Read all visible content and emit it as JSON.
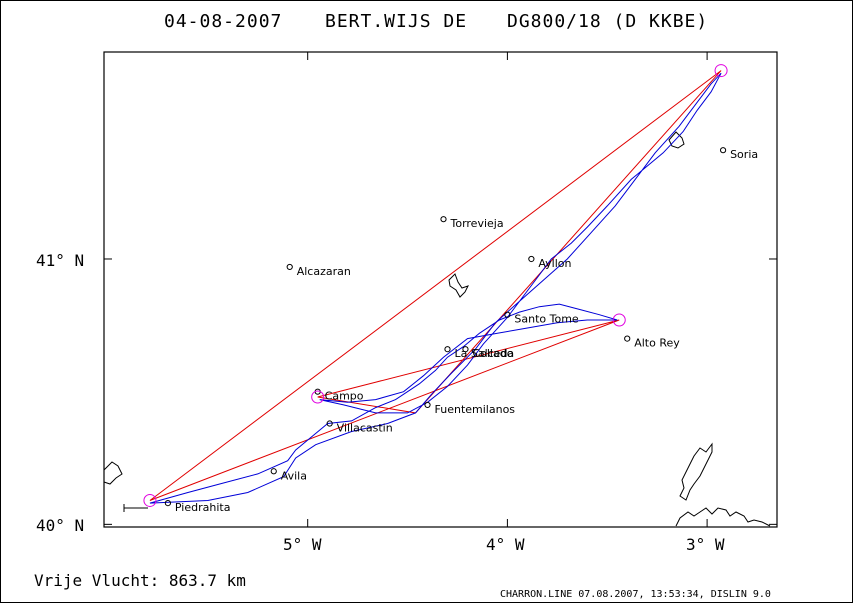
{
  "header": {
    "date": "04-08-2007",
    "pilot": "BERT.WIJS DE",
    "glider": "DG800/18 (D KKBE)"
  },
  "axes": {
    "lat_labels": [
      {
        "text": "41° N",
        "lat": 41.0
      },
      {
        "text": "40° N",
        "lat": 40.0
      }
    ],
    "lon_labels": [
      {
        "text": "5° W",
        "lon": -5.0
      },
      {
        "text": "4° W",
        "lon": -4.0
      },
      {
        "text": "3° W",
        "lon": -3.0
      }
    ],
    "lat_range": [
      39.99,
      41.78
    ],
    "lon_range": [
      -6.02,
      -2.65
    ]
  },
  "places": [
    {
      "name": "Soria",
      "lat": 41.41,
      "lon": -2.92
    },
    {
      "name": "Torrevieja",
      "lat": 41.15,
      "lon": -4.32
    },
    {
      "name": "Alcazaran",
      "lat": 40.97,
      "lon": -5.09
    },
    {
      "name": "Ayllon",
      "lat": 41.0,
      "lon": -3.88
    },
    {
      "name": "Santo Tome",
      "lat": 40.79,
      "lon": -4.0
    },
    {
      "name": "Alto Rey",
      "lat": 40.7,
      "lon": -3.4
    },
    {
      "name": "La Salceda",
      "lat": 40.66,
      "lon": -4.3
    },
    {
      "name": "Collado",
      "lat": 40.66,
      "lon": -4.21
    },
    {
      "name": "Campo",
      "lat": 40.5,
      "lon": -4.95
    },
    {
      "name": "Fuentemilanos",
      "lat": 40.45,
      "lon": -4.4
    },
    {
      "name": "Villacastin",
      "lat": 40.38,
      "lon": -4.89
    },
    {
      "name": "Avila",
      "lat": 40.2,
      "lon": -5.17
    },
    {
      "name": "Piedrahita",
      "lat": 40.08,
      "lon": -5.7
    }
  ],
  "turnpoints": [
    {
      "lat": 40.09,
      "lon": -5.79
    },
    {
      "lat": 41.71,
      "lon": -2.93
    },
    {
      "lat": 40.48,
      "lon": -4.95
    },
    {
      "lat": 40.77,
      "lon": -3.44
    }
  ],
  "course": [
    [
      40.09,
      -5.79
    ],
    [
      41.71,
      -2.93
    ],
    [
      40.42,
      -4.46
    ],
    [
      40.48,
      -4.95
    ],
    [
      40.77,
      -3.44
    ],
    [
      40.09,
      -5.79
    ]
  ],
  "track": [
    [
      40.08,
      -5.79
    ],
    [
      40.12,
      -5.6
    ],
    [
      40.15,
      -5.45
    ],
    [
      40.19,
      -5.25
    ],
    [
      40.24,
      -5.1
    ],
    [
      40.28,
      -5.06
    ],
    [
      40.33,
      -4.98
    ],
    [
      40.38,
      -4.9
    ],
    [
      40.39,
      -4.78
    ],
    [
      40.44,
      -4.66
    ],
    [
      40.47,
      -4.56
    ],
    [
      40.5,
      -4.5
    ],
    [
      40.53,
      -4.44
    ],
    [
      40.58,
      -4.36
    ],
    [
      40.63,
      -4.3
    ],
    [
      40.67,
      -4.22
    ],
    [
      40.72,
      -4.14
    ],
    [
      40.77,
      -4.04
    ],
    [
      40.8,
      -3.94
    ],
    [
      40.82,
      -3.84
    ],
    [
      40.83,
      -3.74
    ],
    [
      40.81,
      -3.64
    ],
    [
      40.79,
      -3.54
    ],
    [
      40.77,
      -3.45
    ],
    [
      40.77,
      -3.6
    ],
    [
      40.76,
      -3.75
    ],
    [
      40.74,
      -3.9
    ],
    [
      40.72,
      -4.05
    ],
    [
      40.7,
      -4.2
    ],
    [
      40.63,
      -4.32
    ],
    [
      40.56,
      -4.42
    ],
    [
      40.5,
      -4.52
    ],
    [
      40.47,
      -4.66
    ],
    [
      40.46,
      -4.8
    ],
    [
      40.47,
      -4.94
    ],
    [
      40.45,
      -4.82
    ],
    [
      40.42,
      -4.66
    ],
    [
      40.42,
      -4.5
    ],
    [
      40.46,
      -4.4
    ],
    [
      40.52,
      -4.3
    ],
    [
      40.6,
      -4.2
    ],
    [
      40.68,
      -4.12
    ],
    [
      40.78,
      -4.0
    ],
    [
      40.9,
      -3.88
    ],
    [
      41.0,
      -3.78
    ],
    [
      41.06,
      -3.68
    ],
    [
      41.12,
      -3.6
    ],
    [
      41.2,
      -3.5
    ],
    [
      41.3,
      -3.38
    ],
    [
      41.4,
      -3.22
    ],
    [
      41.48,
      -3.12
    ],
    [
      41.56,
      -3.05
    ],
    [
      41.63,
      -2.98
    ],
    [
      41.7,
      -2.93
    ],
    [
      41.66,
      -2.98
    ],
    [
      41.58,
      -3.06
    ],
    [
      41.5,
      -3.14
    ],
    [
      41.4,
      -3.26
    ],
    [
      41.3,
      -3.36
    ],
    [
      41.2,
      -3.46
    ],
    [
      41.1,
      -3.58
    ],
    [
      41.0,
      -3.7
    ],
    [
      40.92,
      -3.82
    ],
    [
      40.84,
      -3.94
    ],
    [
      40.76,
      -4.06
    ],
    [
      40.66,
      -4.16
    ],
    [
      40.57,
      -4.28
    ],
    [
      40.49,
      -4.38
    ],
    [
      40.42,
      -4.46
    ],
    [
      40.38,
      -4.6
    ],
    [
      40.35,
      -4.78
    ],
    [
      40.3,
      -4.96
    ],
    [
      40.25,
      -5.06
    ],
    [
      40.18,
      -5.12
    ],
    [
      40.12,
      -5.3
    ],
    [
      40.09,
      -5.5
    ],
    [
      40.08,
      -5.79
    ]
  ],
  "footer": {
    "distance": "Vrije Vlucht:  863.7 km",
    "credit": "CHARRON.LINE 07.08.2007, 13:53:34, DISLIN 9.0"
  }
}
